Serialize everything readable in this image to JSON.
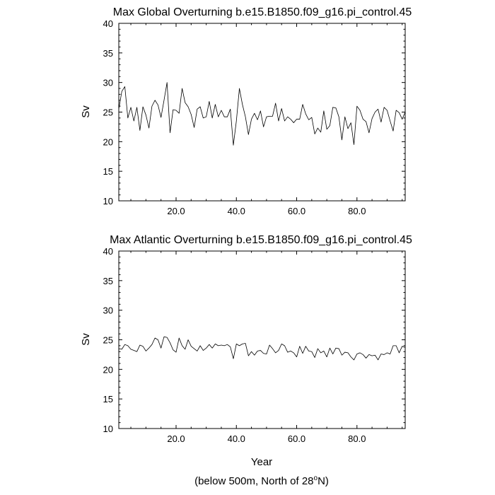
{
  "footnote": {
    "prefix": "(below 500m, North of 28",
    "degree": "o",
    "suffix": "N)"
  },
  "chart_data": [
    {
      "type": "line",
      "title": "Max Global Overturning b.e15.B1850.f09_g16.pi_control.45",
      "xlabel": "",
      "ylabel": "Sv",
      "xlim": [
        1,
        96
      ],
      "ylim": [
        10,
        40
      ],
      "x_ticks": [
        20,
        40,
        60,
        80
      ],
      "x_tick_labels": [
        "20.0",
        "40.0",
        "60.0",
        "80.0"
      ],
      "y_ticks": [
        10,
        15,
        20,
        25,
        30,
        35,
        40
      ],
      "y_tick_labels": [
        "10",
        "15",
        "20",
        "25",
        "30",
        "35",
        "40"
      ],
      "grid": false,
      "x": [
        1,
        2,
        3,
        4,
        5,
        6,
        7,
        8,
        9,
        10,
        11,
        12,
        13,
        14,
        15,
        16,
        17,
        18,
        19,
        20,
        21,
        22,
        23,
        24,
        25,
        26,
        27,
        28,
        29,
        30,
        31,
        32,
        33,
        34,
        35,
        36,
        37,
        38,
        39,
        40,
        41,
        42,
        43,
        44,
        45,
        46,
        47,
        48,
        49,
        50,
        51,
        52,
        53,
        54,
        55,
        56,
        57,
        58,
        59,
        60,
        61,
        62,
        63,
        64,
        65,
        66,
        67,
        68,
        69,
        70,
        71,
        72,
        73,
        74,
        75,
        76,
        77,
        78,
        79,
        80,
        81,
        82,
        83,
        84,
        85,
        86,
        87,
        88,
        89,
        90,
        91,
        92,
        93,
        94,
        95,
        96
      ],
      "values": [
        25.5,
        28.5,
        29.3,
        24.0,
        25.8,
        23.5,
        25.8,
        21.9,
        25.9,
        24.5,
        22.3,
        26.0,
        27.0,
        26.2,
        24.1,
        27.0,
        30.0,
        21.5,
        25.4,
        25.3,
        24.8,
        29.0,
        26.6,
        25.9,
        24.6,
        22.4,
        25.5,
        25.9,
        24.0,
        24.2,
        26.8,
        24.0,
        26.3,
        24.2,
        25.3,
        24.2,
        24.2,
        25.5,
        19.4,
        23.5,
        29.0,
        26.3,
        24.2,
        21.2,
        23.8,
        24.8,
        23.7,
        25.2,
        22.5,
        24.2,
        24.3,
        24.3,
        26.5,
        23.5,
        25.6,
        23.5,
        24.2,
        23.8,
        23.2,
        23.8,
        23.8,
        26.3,
        24.7,
        23.7,
        24.1,
        21.3,
        22.3,
        21.6,
        25.2,
        22.1,
        22.7,
        25.8,
        25.7,
        24.2,
        20.3,
        24.2,
        22.2,
        23.2,
        19.5,
        26.0,
        25.3,
        23.8,
        23.4,
        21.5,
        23.9,
        25.0,
        25.5,
        23.3,
        25.8,
        25.3,
        23.5,
        21.8,
        25.3,
        24.9,
        23.8,
        25.0
      ]
    },
    {
      "type": "line",
      "title": "Max Atlantic Overturning b.e15.B1850.f09_g16.pi_control.45",
      "xlabel": "Year",
      "ylabel": "Sv",
      "xlim": [
        1,
        96
      ],
      "ylim": [
        10,
        40
      ],
      "x_ticks": [
        20,
        40,
        60,
        80
      ],
      "x_tick_labels": [
        "20.0",
        "40.0",
        "60.0",
        "80.0"
      ],
      "y_ticks": [
        10,
        15,
        20,
        25,
        30,
        35,
        40
      ],
      "y_tick_labels": [
        "10",
        "15",
        "20",
        "25",
        "30",
        "35",
        "40"
      ],
      "grid": false,
      "x": [
        1,
        2,
        3,
        4,
        5,
        6,
        7,
        8,
        9,
        10,
        11,
        12,
        13,
        14,
        15,
        16,
        17,
        18,
        19,
        20,
        21,
        22,
        23,
        24,
        25,
        26,
        27,
        28,
        29,
        30,
        31,
        32,
        33,
        34,
        35,
        36,
        37,
        38,
        39,
        40,
        41,
        42,
        43,
        44,
        45,
        46,
        47,
        48,
        49,
        50,
        51,
        52,
        53,
        54,
        55,
        56,
        57,
        58,
        59,
        60,
        61,
        62,
        63,
        64,
        65,
        66,
        67,
        68,
        69,
        70,
        71,
        72,
        73,
        74,
        75,
        76,
        77,
        78,
        79,
        80,
        81,
        82,
        83,
        84,
        85,
        86,
        87,
        88,
        89,
        90,
        91,
        92,
        93,
        94,
        95,
        96
      ],
      "values": [
        23.5,
        23.4,
        24.2,
        24.0,
        23.4,
        23.2,
        23.0,
        24.1,
        23.9,
        23.1,
        23.6,
        24.2,
        25.3,
        25.0,
        23.6,
        25.5,
        25.4,
        24.5,
        23.3,
        22.9,
        25.3,
        24.0,
        23.4,
        25.0,
        23.9,
        23.5,
        23.1,
        24.0,
        23.2,
        23.6,
        24.2,
        23.6,
        24.3,
        24.0,
        24.1,
        24.0,
        24.2,
        23.8,
        21.8,
        24.3,
        24.0,
        24.3,
        24.4,
        22.3,
        23.0,
        22.4,
        23.1,
        23.2,
        22.7,
        22.6,
        24.1,
        23.5,
        22.8,
        23.2,
        24.3,
        24.0,
        22.9,
        23.1,
        22.8,
        22.1,
        23.9,
        22.7,
        23.9,
        23.1,
        23.0,
        22.0,
        23.5,
        22.8,
        23.1,
        22.1,
        23.6,
        22.6,
        23.6,
        23.5,
        22.4,
        22.9,
        22.8,
        22.1,
        21.6,
        22.6,
        22.8,
        22.5,
        21.9,
        22.5,
        22.3,
        22.4,
        21.6,
        22.6,
        22.5,
        22.8,
        22.6,
        24.0,
        24.0,
        22.8,
        23.9,
        23.7
      ]
    }
  ]
}
